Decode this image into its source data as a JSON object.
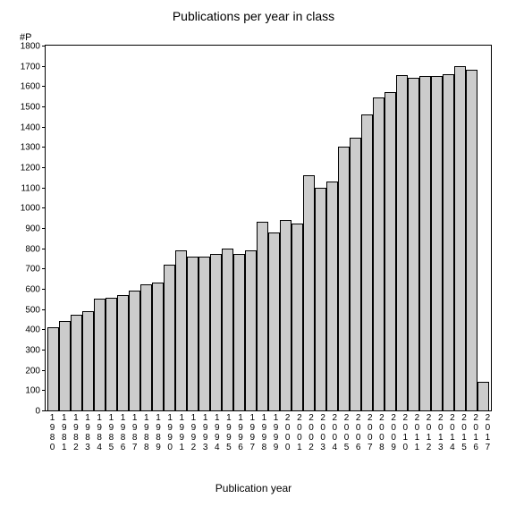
{
  "chart": {
    "type": "bar",
    "title": "Publications per year in class",
    "title_fontsize": 14,
    "ylabel_unit": "#P",
    "xaxis_title": "Publication year",
    "xaxis_title_fontsize": 12,
    "label_fontsize": 10,
    "background_color": "#ffffff",
    "bar_fill": "#cccccc",
    "bar_border": "#000000",
    "axis_color": "#000000",
    "ylim": [
      0,
      1800
    ],
    "ytick_step": 100,
    "yticks": [
      0,
      100,
      200,
      300,
      400,
      500,
      600,
      700,
      800,
      900,
      1000,
      1100,
      1200,
      1300,
      1400,
      1500,
      1600,
      1700,
      1800
    ],
    "categories": [
      "1980",
      "1981",
      "1982",
      "1983",
      "1984",
      "1985",
      "1986",
      "1987",
      "1988",
      "1989",
      "1990",
      "1991",
      "1992",
      "1993",
      "1994",
      "1995",
      "1996",
      "1997",
      "1998",
      "1999",
      "2000",
      "2001",
      "2002",
      "2003",
      "2004",
      "2005",
      "2006",
      "2007",
      "2008",
      "2009",
      "2010",
      "2011",
      "2012",
      "2013",
      "2014",
      "2015",
      "2016",
      "2017"
    ],
    "values": [
      410,
      440,
      470,
      490,
      550,
      555,
      570,
      590,
      620,
      630,
      720,
      790,
      760,
      760,
      770,
      800,
      770,
      790,
      930,
      880,
      940,
      920,
      1160,
      1100,
      1130,
      1300,
      1345,
      1460,
      1545,
      1570,
      1655,
      1640,
      1650,
      1650,
      1660,
      1700,
      1680,
      140
    ],
    "bar_width": 0.96
  }
}
